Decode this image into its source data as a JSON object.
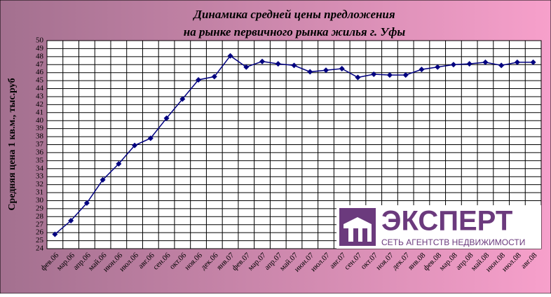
{
  "chart_data": {
    "type": "line",
    "title": [
      "Динамика средней цены предложения",
      "на рынке первичного рынка жилья г. Уфы"
    ],
    "y_label": "Средняя цена 1 кв.м., тыс.руб",
    "categories": [
      "фев.06",
      "мар.06",
      "апр.06",
      "май.06",
      "июн.06",
      "июл.06",
      "авг.06",
      "сен.06",
      "окт.06",
      "ноя.06",
      "дек.06",
      "янв.07",
      "фев.07",
      "мар.07",
      "апр.07",
      "май.07",
      "июн.07",
      "июл.07",
      "авг.07",
      "сен.07",
      "окт.07",
      "ноя.07",
      "дек.07",
      "янв.08",
      "фев.08",
      "мар.08",
      "апр.08",
      "май.08",
      "июн.08",
      "июл.08",
      "авг.08"
    ],
    "values": [
      25.8,
      27.5,
      29.7,
      32.6,
      34.6,
      36.9,
      37.8,
      40.3,
      42.7,
      45.1,
      45.5,
      48.1,
      46.7,
      47.4,
      47.1,
      46.9,
      46.1,
      46.3,
      46.5,
      45.4,
      45.8,
      45.7,
      45.7,
      46.4,
      46.7,
      47.0,
      47.1,
      47.3,
      46.9,
      47.3,
      47.3
    ],
    "color": "#000080",
    "ylim": [
      24,
      50
    ],
    "yticks": [
      24,
      25,
      26,
      27,
      28,
      29,
      30,
      31,
      32,
      33,
      34,
      35,
      36,
      37,
      38,
      39,
      40,
      41,
      42,
      43,
      44,
      45,
      46,
      47,
      48,
      49,
      50
    ],
    "grid": true
  },
  "logo": {
    "name": "ЭКСПЕРТ",
    "tagline": "СЕТЬ АГЕНТСТВ НЕДВИЖИМОСТИ"
  }
}
